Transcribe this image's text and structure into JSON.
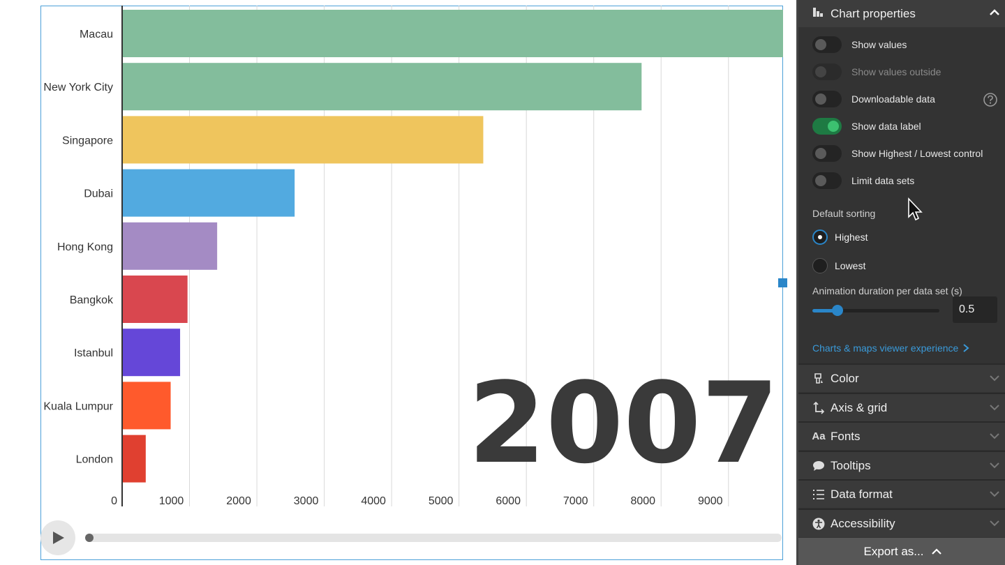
{
  "chart_data": {
    "type": "bar",
    "orientation": "horizontal",
    "categories": [
      "Macau",
      "New York City",
      "Singapore",
      "Dubai",
      "Hong Kong",
      "Bangkok",
      "Istanbul",
      "Kuala Lumpur",
      "London"
    ],
    "values": [
      9800,
      7700,
      5350,
      2550,
      1400,
      960,
      850,
      710,
      340
    ],
    "colors": [
      "#83bd9c",
      "#83bd9c",
      "#efc55d",
      "#52aae0",
      "#a48bc4",
      "#d9474f",
      "#6547d8",
      "#ff5a2c",
      "#e04030"
    ],
    "xticks": [
      0,
      1000,
      2000,
      3000,
      4000,
      5000,
      6000,
      7000,
      8000,
      9000
    ],
    "xlim": [
      0,
      9800
    ],
    "grid": "vertical",
    "overlay_year": "2007"
  },
  "panel": {
    "title": "Chart properties",
    "toggles": [
      {
        "label": "Show values",
        "on": false,
        "disabled": false
      },
      {
        "label": "Show values outside",
        "on": false,
        "disabled": true
      },
      {
        "label": "Downloadable data",
        "on": false,
        "disabled": false
      },
      {
        "label": "Show data label",
        "on": true,
        "disabled": false
      },
      {
        "label": "Show Highest / Lowest control",
        "on": false,
        "disabled": false
      },
      {
        "label": "Limit data sets",
        "on": false,
        "disabled": false
      }
    ],
    "sorting_label": "Default sorting",
    "sorting_options": [
      {
        "label": "Highest",
        "checked": true
      },
      {
        "label": "Lowest",
        "checked": false
      }
    ],
    "animation_label": "Animation duration per data set (s)",
    "animation_value": "0.5",
    "animation_fraction": 0.2,
    "viewer_link": "Charts & maps viewer experience",
    "sections": [
      {
        "label": "Color",
        "icon": "color-icon"
      },
      {
        "label": "Axis & grid",
        "icon": "axis-icon"
      },
      {
        "label": "Fonts",
        "icon": "fonts-icon"
      },
      {
        "label": "Tooltips",
        "icon": "tooltip-icon"
      },
      {
        "label": "Data format",
        "icon": "list-icon"
      },
      {
        "label": "Accessibility",
        "icon": "accessibility-icon"
      }
    ],
    "export_label": "Export as...",
    "section_icon_text": {
      "fonts": "Aa"
    }
  }
}
